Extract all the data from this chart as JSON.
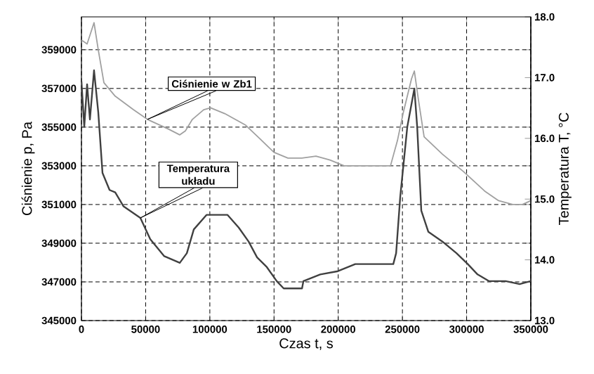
{
  "chart_data": {
    "type": "line",
    "xlabel": "Czas t, s",
    "ylabel": "Ciśnienie p, Pa",
    "y2label": "Temperatura T, °C",
    "xlim": [
      0,
      350000
    ],
    "xticks": [
      0,
      50000,
      100000,
      150000,
      200000,
      250000,
      300000,
      350000
    ],
    "ylim": [
      345000,
      360700
    ],
    "yticks": [
      345000,
      347000,
      349000,
      351000,
      353000,
      355000,
      357000,
      359000
    ],
    "y2lim": [
      13,
      18
    ],
    "y2ticks": [
      {
        "value": 13,
        "label": "13.0"
      },
      {
        "value": 14,
        "label": "14.0"
      },
      {
        "value": 15,
        "label": "15.0"
      },
      {
        "value": 16,
        "label": "16.0"
      },
      {
        "value": 17,
        "label": "17.0"
      },
      {
        "value": 18,
        "label": "18.0"
      }
    ],
    "grid": true,
    "series": [
      {
        "name": "Ciśnienie w Zb1",
        "color": "#a0a0a0",
        "x": [
          0,
          4400,
          9800,
          13100,
          17500,
          26300,
          40500,
          51400,
          67800,
          76600,
          80900,
          86400,
          95200,
          100600,
          111600,
          127900,
          139000,
          149900,
          160800,
          171700,
          182700,
          193600,
          204600,
          223200,
          240700,
          246100,
          250500,
          257100,
          259300,
          262500,
          266900,
          281200,
          297600,
          314000,
          324900,
          335900,
          343500,
          350000
        ],
        "values": [
          359500,
          359300,
          360400,
          359000,
          357300,
          356600,
          355900,
          355400,
          354900,
          354600,
          354800,
          355400,
          355900,
          356000,
          355700,
          355100,
          354400,
          353700,
          353400,
          353400,
          353500,
          353300,
          353000,
          353000,
          353000,
          354300,
          355700,
          357500,
          357900,
          356400,
          354500,
          353600,
          352700,
          351700,
          351200,
          351000,
          351000,
          351200
        ]
      },
      {
        "name": "Temperatura układu",
        "color": "#404040",
        "axis": "y2",
        "x": [
          0,
          2200,
          4400,
          6600,
          9800,
          13100,
          16400,
          21900,
          26300,
          32800,
          45900,
          53600,
          64500,
          76600,
          82100,
          87500,
          97400,
          113800,
          122500,
          130200,
          136800,
          144400,
          152100,
          157500,
          171800,
          172900,
          186000,
          199100,
          213300,
          242900,
          245100,
          248300,
          253800,
          259300,
          261500,
          264700,
          270200,
          281200,
          292100,
          300900,
          308500,
          317300,
          330400,
          341300,
          350000
        ],
        "values": [
          16.94,
          16.19,
          16.89,
          16.31,
          17.12,
          16.43,
          15.43,
          15.15,
          15.11,
          14.88,
          14.69,
          14.34,
          14.06,
          13.95,
          14.11,
          14.5,
          14.74,
          14.74,
          14.53,
          14.3,
          14.04,
          13.88,
          13.65,
          13.53,
          13.53,
          13.65,
          13.76,
          13.81,
          13.93,
          13.93,
          14.11,
          15.04,
          16.19,
          16.82,
          16.19,
          14.81,
          14.46,
          14.3,
          14.11,
          13.93,
          13.76,
          13.65,
          13.65,
          13.6,
          13.65
        ]
      }
    ]
  }
}
